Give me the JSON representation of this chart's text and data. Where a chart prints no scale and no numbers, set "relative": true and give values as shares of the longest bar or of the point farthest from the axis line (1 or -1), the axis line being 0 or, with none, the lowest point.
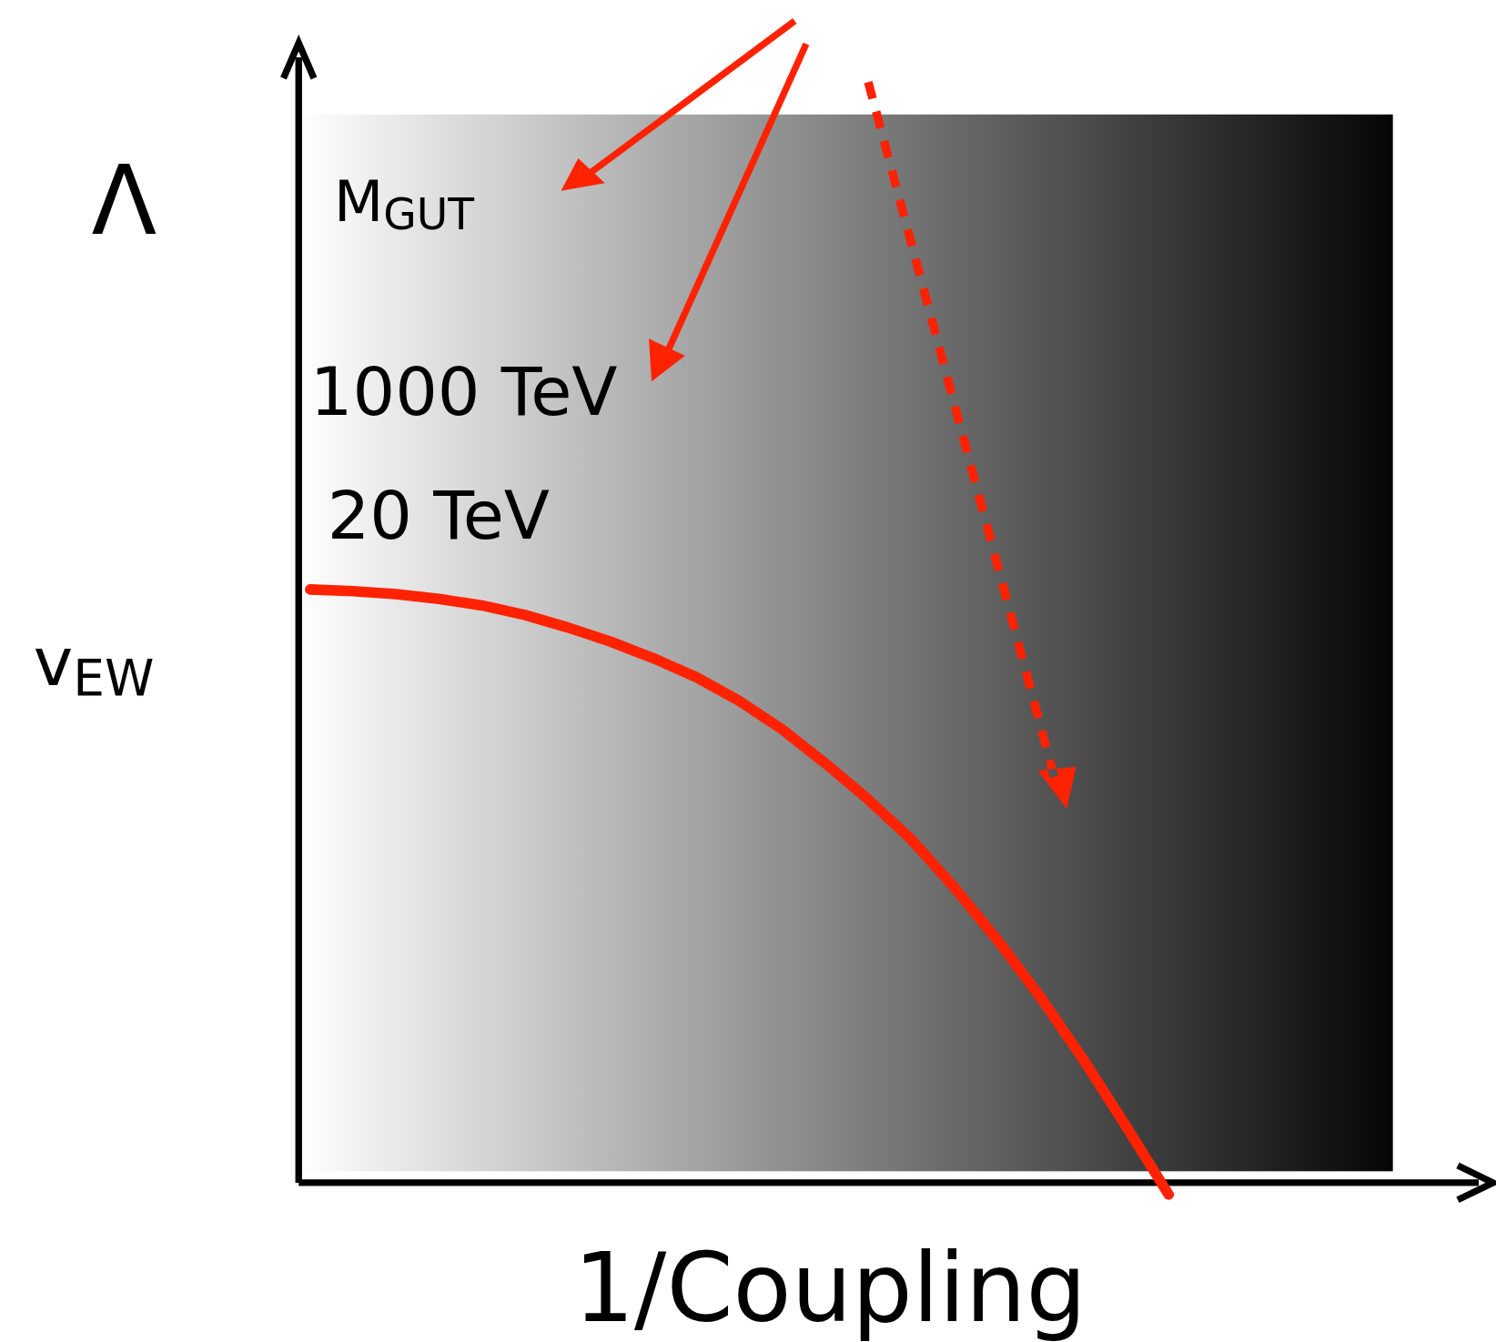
{
  "chart_data": {
    "type": "line",
    "relative": true,
    "xlabel": "1/Coupling",
    "ylabel": "Λ",
    "color": "#ff2200",
    "categories": [
      null,
      null,
      null,
      null,
      null,
      null,
      null,
      null,
      null,
      null,
      null,
      null,
      null,
      null,
      null,
      null,
      null,
      null,
      null,
      null,
      null,
      null,
      null,
      null,
      null,
      null
    ],
    "values": [
      1.0,
      0.997,
      0.992,
      0.984,
      0.973,
      0.957,
      0.936,
      0.912,
      0.884,
      0.852,
      0.812,
      0.764,
      0.707,
      0.646,
      0.579,
      0.498,
      0.41,
      0.314,
      0.209,
      0.096,
      -0.02,
      null,
      null,
      null,
      null,
      null
    ],
    "annotations": [
      "M$_{GUT}$",
      "1000 TeV",
      "20 TeV",
      "v$_{EW}$"
    ]
  }
}
